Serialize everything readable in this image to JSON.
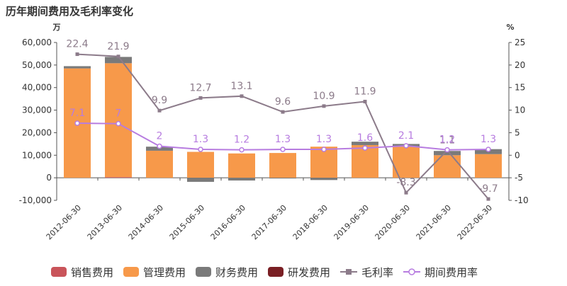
{
  "chart_data": {
    "type": "bar",
    "title": "历年期间费用及毛利率变化",
    "y_left_unit": "万",
    "y_right_unit": "%",
    "y_left_range": [
      -10000,
      60000
    ],
    "y_left_ticks": [
      "-10,000",
      "0",
      "10,000",
      "20,000",
      "30,000",
      "40,000",
      "50,000",
      "60,000"
    ],
    "y_right_range": [
      -10,
      25
    ],
    "y_right_ticks": [
      "-10",
      "-5",
      "0",
      "5",
      "10",
      "15",
      "20",
      "25"
    ],
    "grid": false,
    "legend_position": "bottom",
    "categories": [
      "2012-06-30",
      "2013-06-30",
      "2014-06-30",
      "2015-06-30",
      "2016-06-30",
      "2017-06-30",
      "2018-06-30",
      "2019-06-30",
      "2020-06-30",
      "2021-06-30",
      "2022-06-30"
    ],
    "bar_series": [
      {
        "name": "销售费用",
        "color": "#c9545a",
        "values": [
          0,
          300,
          0,
          0,
          0,
          0,
          0,
          0,
          0,
          0,
          0
        ]
      },
      {
        "name": "管理费用",
        "color": "#f7994a",
        "values": [
          48500,
          50500,
          12000,
          11500,
          10800,
          11000,
          13800,
          14500,
          13800,
          10000,
          10500
        ]
      },
      {
        "name": "财务费用",
        "color": "#7a7a7a",
        "values": [
          1000,
          2800,
          1800,
          -1800,
          -1200,
          -300,
          -1000,
          1500,
          1200,
          1900,
          2200
        ]
      },
      {
        "name": "研发费用",
        "color": "#7a1f24",
        "values": [
          0,
          0,
          0,
          0,
          0,
          0,
          0,
          0,
          0,
          0,
          0
        ]
      }
    ],
    "line_series": [
      {
        "name": "毛利率",
        "color": "#8c7b8a",
        "marker": "square",
        "values": [
          22.4,
          21.9,
          9.9,
          12.7,
          13.1,
          9.6,
          10.9,
          11.9,
          -8.3,
          1.1,
          -9.7
        ]
      },
      {
        "name": "期间费用率",
        "color": "#b77ce0",
        "marker": "circle",
        "values": [
          7.1,
          7,
          2,
          1.3,
          1.2,
          1.3,
          1.3,
          1.6,
          2.1,
          1.2,
          1.3
        ]
      }
    ]
  }
}
